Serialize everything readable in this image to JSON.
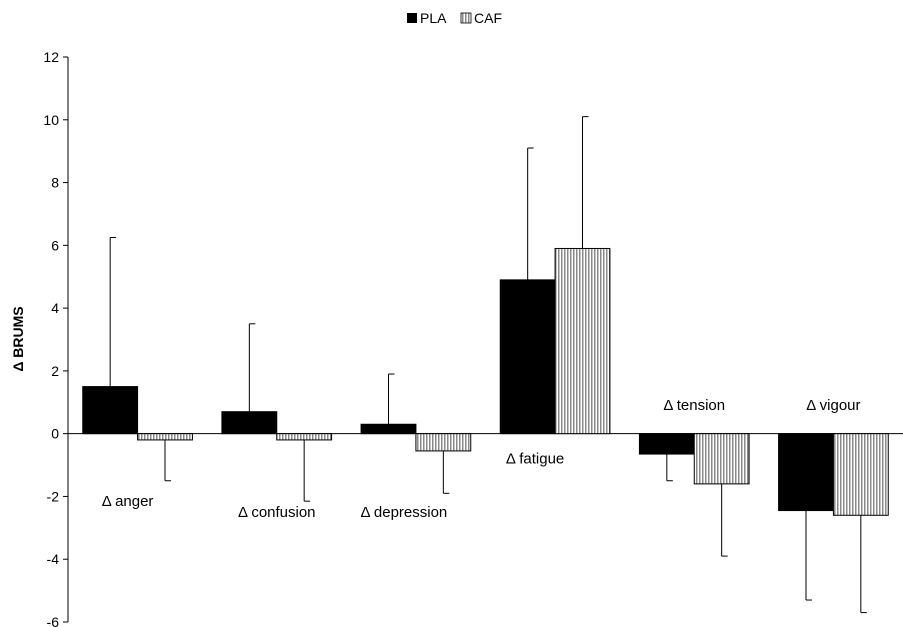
{
  "chart_data": {
    "type": "bar",
    "title": "",
    "xlabel": "",
    "ylabel": "Δ BRUMS",
    "ylim": [
      -6,
      12
    ],
    "yticks": [
      -6,
      -4,
      -2,
      0,
      2,
      4,
      6,
      8,
      10,
      12
    ],
    "grid": false,
    "legend_position": "top-center",
    "categories": [
      "Δ anger",
      "Δ confusion",
      "Δ depression",
      "Δ fatigue",
      "Δ tension",
      "Δ vigour"
    ],
    "series": [
      {
        "name": "PLA",
        "color": "#000000",
        "pattern": "solid",
        "values": [
          1.5,
          0.7,
          0.3,
          4.9,
          -0.65,
          -2.45
        ],
        "errors": [
          4.75,
          2.8,
          1.6,
          4.2,
          0.85,
          2.85
        ]
      },
      {
        "name": "CAF",
        "color": "#d9d9d9",
        "pattern": "vertical-stripes",
        "values": [
          -0.2,
          -0.2,
          -0.55,
          5.9,
          -1.6,
          -2.6
        ],
        "errors": [
          1.3,
          1.95,
          1.35,
          4.2,
          2.3,
          3.1
        ]
      }
    ]
  }
}
